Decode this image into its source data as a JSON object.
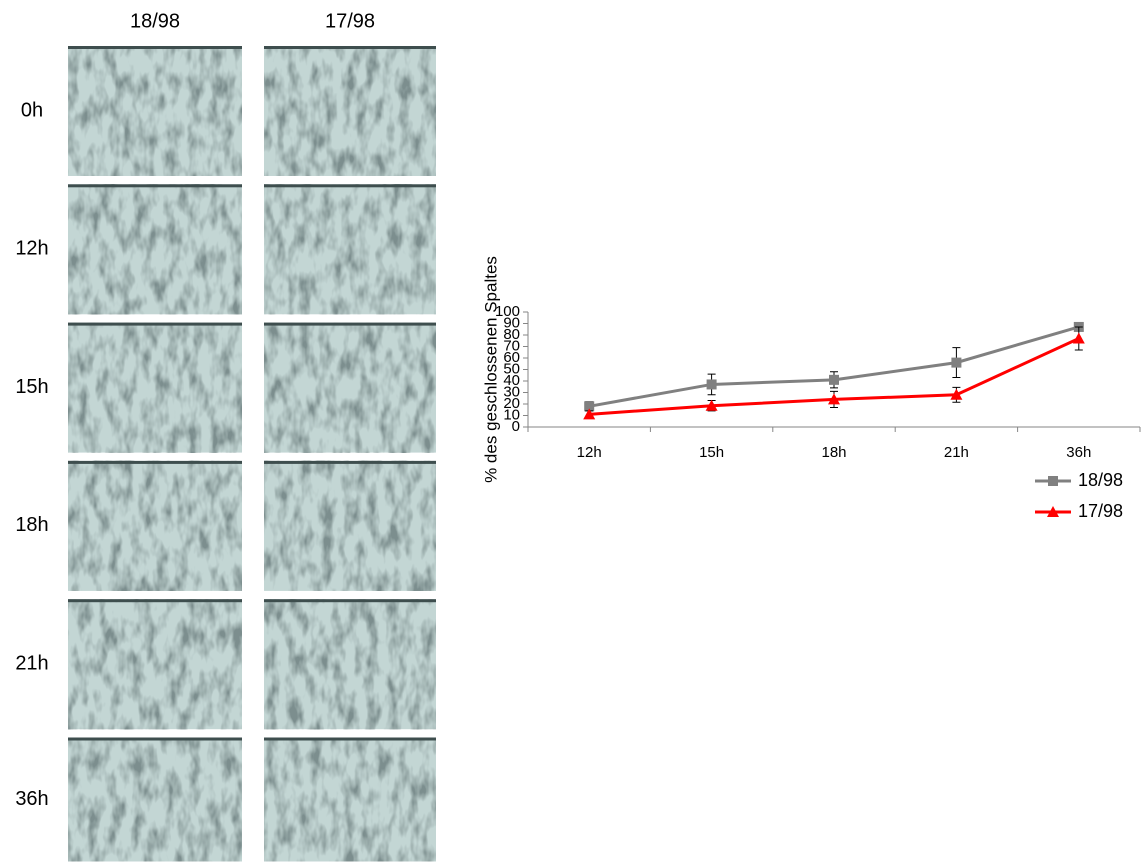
{
  "image_grid": {
    "columns": [
      "18/98",
      "17/98"
    ],
    "rows": [
      "0h",
      "12h",
      "15h",
      "18h",
      "21h",
      "36h"
    ]
  },
  "chart_data": {
    "type": "line",
    "y_label": "% des geschlossenen Spaltes",
    "categories": [
      "12h",
      "15h",
      "18h",
      "21h",
      "36h"
    ],
    "series": [
      {
        "name": "18/98",
        "color": "#808080",
        "marker": "square",
        "values": [
          18,
          37,
          41,
          56,
          87
        ],
        "errors": [
          4,
          9,
          7,
          13,
          1
        ]
      },
      {
        "name": "17/98",
        "color": "#ff0000",
        "marker": "triangle",
        "values": [
          11,
          18.5,
          24,
          28,
          77
        ],
        "errors": [
          3,
          4.5,
          7,
          6.5,
          10
        ]
      }
    ],
    "ylim": [
      0,
      100
    ],
    "yticks": [
      0,
      10,
      20,
      30,
      40,
      50,
      60,
      70,
      80,
      90,
      100
    ],
    "grid": false,
    "legend": "right"
  }
}
